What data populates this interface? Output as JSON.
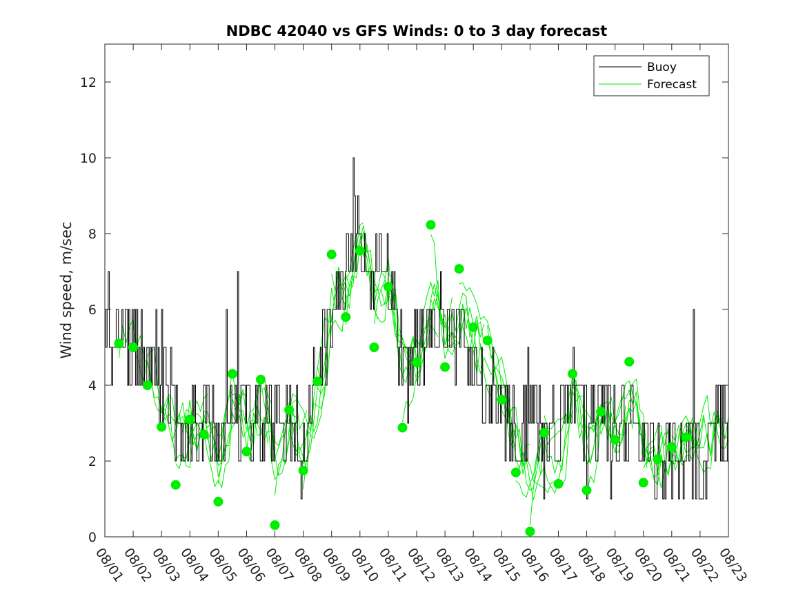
{
  "chart_data": {
    "type": "line",
    "title": "NDBC 42040 vs GFS Winds: 0 to 3 day forecast",
    "xlabel": "",
    "ylabel": "Wind speed, m/sec",
    "ylim": [
      0,
      13
    ],
    "xlim": [
      0,
      22
    ],
    "yticks": [
      0,
      2,
      4,
      6,
      8,
      10,
      12
    ],
    "x_tick_labels": [
      "08/01",
      "08/02",
      "08/03",
      "08/04",
      "08/05",
      "08/06",
      "08/07",
      "08/08",
      "08/09",
      "08/10",
      "08/11",
      "08/12",
      "08/13",
      "08/14",
      "08/15",
      "08/16",
      "08/17",
      "08/18",
      "08/19",
      "08/20",
      "08/21",
      "08/22",
      "08/23"
    ],
    "legend": {
      "position": "top-right",
      "entries": [
        {
          "name": "Buoy",
          "color": "#000000"
        },
        {
          "name": "Forecast",
          "color": "#00ee00"
        }
      ]
    },
    "colors": {
      "buoy": "#000000",
      "forecast": "#00ee00",
      "marker": "#00ee00"
    },
    "buoy_trend": [
      [
        0,
        5.5
      ],
      [
        0.5,
        5.5
      ],
      [
        1,
        5
      ],
      [
        1.5,
        5
      ],
      [
        2,
        4.5
      ],
      [
        2.5,
        3.2
      ],
      [
        3,
        3.2
      ],
      [
        3.5,
        3
      ],
      [
        4,
        2.5
      ],
      [
        4.5,
        3.5
      ],
      [
        5,
        3.2
      ],
      [
        5.5,
        3
      ],
      [
        6,
        3
      ],
      [
        6.5,
        3.5
      ],
      [
        7,
        2.5
      ],
      [
        7.5,
        4
      ],
      [
        8,
        6
      ],
      [
        8.5,
        7
      ],
      [
        9,
        8
      ],
      [
        9.5,
        7
      ],
      [
        10,
        7
      ],
      [
        10.5,
        5
      ],
      [
        11,
        5
      ],
      [
        11.5,
        5.5
      ],
      [
        12,
        5.5
      ],
      [
        12.5,
        5.5
      ],
      [
        13,
        4.5
      ],
      [
        13.5,
        4
      ],
      [
        14,
        3.5
      ],
      [
        14.5,
        2.8
      ],
      [
        15,
        3.5
      ],
      [
        15.5,
        2
      ],
      [
        16,
        3
      ],
      [
        16.5,
        3.5
      ],
      [
        17,
        2.5
      ],
      [
        17.5,
        3.5
      ],
      [
        18,
        3
      ],
      [
        18.5,
        3
      ],
      [
        19,
        2.5
      ],
      [
        19.5,
        2
      ],
      [
        20,
        2
      ],
      [
        20.5,
        2
      ],
      [
        21,
        2
      ],
      [
        21.5,
        3
      ],
      [
        22,
        3
      ]
    ],
    "forecast_markers": [
      {
        "x": 0.5,
        "y": 5.1
      },
      {
        "x": 1.0,
        "y": 5.0
      },
      {
        "x": 1.5,
        "y": 4.0
      },
      {
        "x": 2.0,
        "y": 2.9
      },
      {
        "x": 2.5,
        "y": 1.37
      },
      {
        "x": 3.0,
        "y": 3.1
      },
      {
        "x": 3.5,
        "y": 2.7
      },
      {
        "x": 4.0,
        "y": 0.93
      },
      {
        "x": 4.5,
        "y": 4.3
      },
      {
        "x": 5.0,
        "y": 2.25
      },
      {
        "x": 5.5,
        "y": 4.15
      },
      {
        "x": 6.0,
        "y": 0.31
      },
      {
        "x": 6.5,
        "y": 3.35
      },
      {
        "x": 7.0,
        "y": 1.75
      },
      {
        "x": 7.5,
        "y": 4.1
      },
      {
        "x": 8.0,
        "y": 7.45
      },
      {
        "x": 8.5,
        "y": 5.8
      },
      {
        "x": 9.0,
        "y": 7.55
      },
      {
        "x": 9.5,
        "y": 5.0
      },
      {
        "x": 10.0,
        "y": 6.6
      },
      {
        "x": 10.5,
        "y": 2.88
      },
      {
        "x": 11.0,
        "y": 4.6
      },
      {
        "x": 11.5,
        "y": 8.23
      },
      {
        "x": 12.0,
        "y": 4.48
      },
      {
        "x": 12.5,
        "y": 7.07
      },
      {
        "x": 13.0,
        "y": 5.53
      },
      {
        "x": 13.5,
        "y": 5.18
      },
      {
        "x": 14.0,
        "y": 3.62
      },
      {
        "x": 14.5,
        "y": 1.7
      },
      {
        "x": 15.0,
        "y": 0.14
      },
      {
        "x": 15.5,
        "y": 2.75
      },
      {
        "x": 16.0,
        "y": 1.4
      },
      {
        "x": 16.5,
        "y": 4.3
      },
      {
        "x": 17.0,
        "y": 1.23
      },
      {
        "x": 17.5,
        "y": 3.3
      },
      {
        "x": 18.0,
        "y": 2.56
      },
      {
        "x": 18.5,
        "y": 4.62
      },
      {
        "x": 19.0,
        "y": 1.43
      },
      {
        "x": 19.5,
        "y": 2.05
      },
      {
        "x": 20.0,
        "y": 2.37
      },
      {
        "x": 20.5,
        "y": 2.63
      }
    ]
  }
}
